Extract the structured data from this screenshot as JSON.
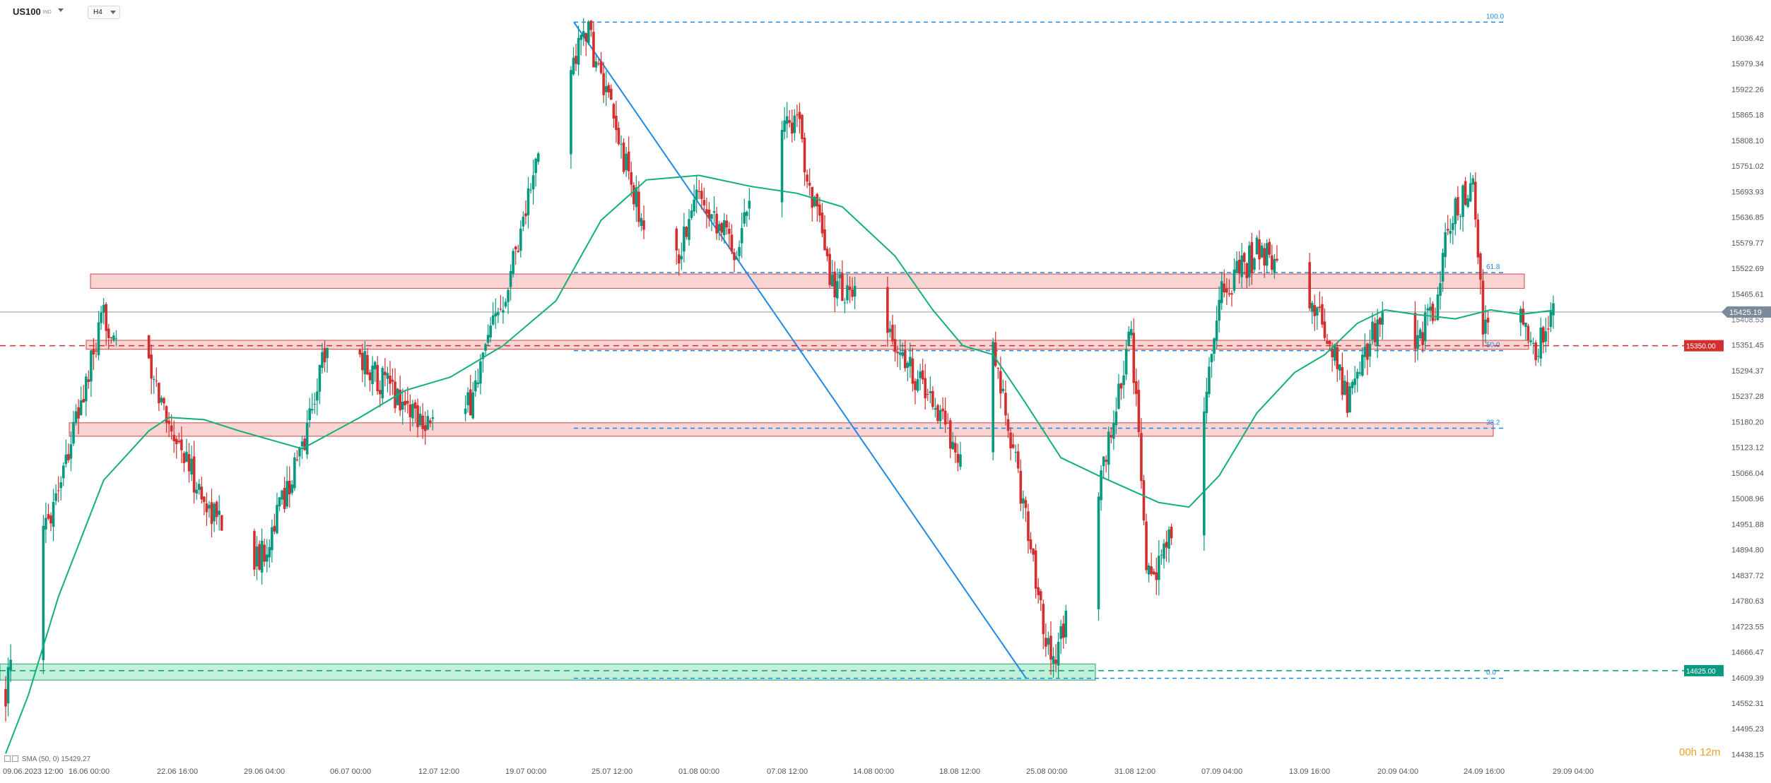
{
  "header": {
    "symbol": "US100",
    "symbol_sub": "IND",
    "timeframe": "H4"
  },
  "indicator": {
    "label": "SMA (50, 0) 15429.27"
  },
  "countdown": {
    "hours": "00h",
    "minutes": "12m"
  },
  "colors": {
    "up": "#089981",
    "down": "#d32f2f",
    "sma": "#10b07a",
    "fib": "#1e88e5",
    "zone_red": "#f8bcbc",
    "zone_green": "#a9e9c9"
  },
  "chart_data": {
    "type": "candlestick",
    "symbol": "US100",
    "timeframe": "H4",
    "ylim": [
      14420,
      16093
    ],
    "xlim": [
      "2023-06-09 12:00",
      "2023-09-29 04:00"
    ],
    "y_ticks": [
      "16036.42",
      "15979.34",
      "15922.26",
      "15865.18",
      "15808.10",
      "15751.02",
      "15693.93",
      "15636.85",
      "15579.77",
      "15522.69",
      "15465.61",
      "15408.53",
      "15351.45",
      "15294.37",
      "15237.28",
      "15180.20",
      "15123.12",
      "15066.04",
      "15008.96",
      "14951.88",
      "14894.80",
      "14837.72",
      "14780.63",
      "14723.55",
      "14666.47",
      "14609.39",
      "14552.31",
      "14495.23",
      "14438.15"
    ],
    "x_ticks": [
      "09.06.2023 12:00",
      "16.06 00:00",
      "22.06 16:00",
      "29.06 04:00",
      "06.07 00:00",
      "12.07 12:00",
      "19.07 00:00",
      "25.07 12:00",
      "01.08 00:00",
      "07.08 12:00",
      "14.08 00:00",
      "18.08 12:00",
      "25.08 00:00",
      "31.08 12:00",
      "07.09 04:00",
      "13.09 16:00",
      "20.09 04:00",
      "24.09 16:00",
      "29.09 04:00"
    ],
    "last_price": {
      "value": 15425.19,
      "label": "15425.19",
      "hidden_label": "15408.53"
    },
    "price_levels": [
      {
        "value": 15350.0,
        "label": "15350.00",
        "color": "#d32f2f"
      },
      {
        "value": 14625.0,
        "label": "14625.00",
        "color": "#089981"
      }
    ],
    "fibonacci": {
      "high": 16072,
      "low": 14608,
      "levels": [
        {
          "label": "100.0",
          "value": 16072
        },
        {
          "label": "61.8",
          "value": 15513
        },
        {
          "label": "50.0",
          "value": 15339
        },
        {
          "label": "38.2",
          "value": 15166
        },
        {
          "label": "0.0",
          "value": 14608
        }
      ]
    },
    "zones": [
      {
        "kind": "resistance",
        "from": "2023-06-16 00:00",
        "to": "2023-09-20 04:00",
        "low": 15478,
        "high": 15510
      },
      {
        "kind": "resistance",
        "from": "2023-06-15 20:00",
        "to": "2023-09-20 08:00",
        "low": 15342,
        "high": 15362
      },
      {
        "kind": "resistance",
        "from": "2023-06-15 00:00",
        "to": "2023-09-20 00:00",
        "low": 15148,
        "high": 15178
      },
      {
        "kind": "support",
        "from": "2023-06-09 12:00",
        "to": "2023-08-24 16:00",
        "low": 14604,
        "high": 14640
      }
    ],
    "trend_line": {
      "from": {
        "x": "2023-07-19 00:00",
        "y": 16072
      },
      "to": {
        "x": "2023-08-17 20:00",
        "y": 14608
      }
    },
    "anchors": [
      {
        "x": "2023-06-09 12:00",
        "close": 14580
      },
      {
        "x": "2023-06-12 04:00",
        "close": 14950
      },
      {
        "x": "2023-06-14 08:00",
        "close": 15200
      },
      {
        "x": "2023-06-16 00:00",
        "close": 15410
      },
      {
        "x": "2023-06-19 00:00",
        "close": 15290
      },
      {
        "x": "2023-06-22 16:00",
        "close": 15000
      },
      {
        "x": "2023-06-26 08:00",
        "close": 14870
      },
      {
        "x": "2023-06-29 04:00",
        "close": 15120
      },
      {
        "x": "2023-07-01 00:00",
        "close": 15390
      },
      {
        "x": "2023-07-06 00:00",
        "close": 15220
      },
      {
        "x": "2023-07-09 12:00",
        "close": 15140
      },
      {
        "x": "2023-07-12 12:00",
        "close": 15460
      },
      {
        "x": "2023-07-15 00:00",
        "close": 15790
      },
      {
        "x": "2023-07-18 00:00",
        "close": 16060
      },
      {
        "x": "2023-07-21 12:00",
        "close": 15650
      },
      {
        "x": "2023-07-23 16:00",
        "close": 15500
      },
      {
        "x": "2023-07-25 12:00",
        "close": 15700
      },
      {
        "x": "2023-07-28 00:00",
        "close": 15560
      },
      {
        "x": "2023-07-29 20:00",
        "close": 15860
      },
      {
        "x": "2023-08-01 00:00",
        "close": 15850
      },
      {
        "x": "2023-08-03 04:00",
        "close": 15500
      },
      {
        "x": "2023-08-05 12:00",
        "close": 15430
      },
      {
        "x": "2023-08-07 12:00",
        "close": 15350
      },
      {
        "x": "2023-08-10 00:00",
        "close": 15230
      },
      {
        "x": "2023-08-12 04:00",
        "close": 15080
      },
      {
        "x": "2023-08-14 00:00",
        "close": 15330
      },
      {
        "x": "2023-08-16 00:00",
        "close": 15000
      },
      {
        "x": "2023-08-17 20:00",
        "close": 14640
      },
      {
        "x": "2023-08-19 12:00",
        "close": 14800
      },
      {
        "x": "2023-08-21 00:00",
        "close": 15020
      },
      {
        "x": "2023-08-23 04:00",
        "close": 15380
      },
      {
        "x": "2023-08-24 04:00",
        "close": 14870
      },
      {
        "x": "2023-08-25 00:00",
        "close": 14860
      },
      {
        "x": "2023-08-27 08:00",
        "close": 15050
      },
      {
        "x": "2023-08-29 00:00",
        "close": 15460
      },
      {
        "x": "2023-08-31 12:00",
        "close": 15560
      },
      {
        "x": "2023-09-03 00:00",
        "close": 15520
      },
      {
        "x": "2023-09-05 08:00",
        "close": 15360
      },
      {
        "x": "2023-09-06 12:00",
        "close": 15230
      },
      {
        "x": "2023-09-08 16:00",
        "close": 15420
      },
      {
        "x": "2023-09-10 08:00",
        "close": 15320
      },
      {
        "x": "2023-09-12 12:00",
        "close": 15440
      },
      {
        "x": "2023-09-13 04:00",
        "close": 15620
      },
      {
        "x": "2023-09-14 20:00",
        "close": 15710
      },
      {
        "x": "2023-09-15 12:00",
        "close": 15390
      },
      {
        "x": "2023-09-17 12:00",
        "close": 15440
      },
      {
        "x": "2023-09-19 00:00",
        "close": 15330
      },
      {
        "x": "2023-09-20 04:00",
        "close": 15425
      }
    ],
    "sma": {
      "label": "SMA (50, 0)",
      "last": 15429.27,
      "points": [
        {
          "x": "2023-06-09 12:00",
          "y": 14440
        },
        {
          "x": "2023-06-11 00:00",
          "y": 14570
        },
        {
          "x": "2023-06-13 00:00",
          "y": 14790
        },
        {
          "x": "2023-06-16 00:00",
          "y": 15050
        },
        {
          "x": "2023-06-19 00:00",
          "y": 15160
        },
        {
          "x": "2023-06-20 08:00",
          "y": 15190
        },
        {
          "x": "2023-06-22 16:00",
          "y": 15185
        },
        {
          "x": "2023-06-25 00:00",
          "y": 15160
        },
        {
          "x": "2023-06-29 04:00",
          "y": 15120
        },
        {
          "x": "2023-07-03 00:00",
          "y": 15190
        },
        {
          "x": "2023-07-06 00:00",
          "y": 15250
        },
        {
          "x": "2023-07-09 00:00",
          "y": 15280
        },
        {
          "x": "2023-07-12 12:00",
          "y": 15350
        },
        {
          "x": "2023-07-16 00:00",
          "y": 15450
        },
        {
          "x": "2023-07-19 00:00",
          "y": 15630
        },
        {
          "x": "2023-07-22 00:00",
          "y": 15720
        },
        {
          "x": "2023-07-25 12:00",
          "y": 15730
        },
        {
          "x": "2023-07-29 00:00",
          "y": 15705
        },
        {
          "x": "2023-08-01 00:00",
          "y": 15690
        },
        {
          "x": "2023-08-04 00:00",
          "y": 15660
        },
        {
          "x": "2023-08-07 12:00",
          "y": 15550
        },
        {
          "x": "2023-08-10 00:00",
          "y": 15430
        },
        {
          "x": "2023-08-12 00:00",
          "y": 15350
        },
        {
          "x": "2023-08-14 00:00",
          "y": 15330
        },
        {
          "x": "2023-08-16 00:00",
          "y": 15230
        },
        {
          "x": "2023-08-18 12:00",
          "y": 15100
        },
        {
          "x": "2023-08-21 00:00",
          "y": 15060
        },
        {
          "x": "2023-08-23 00:00",
          "y": 15030
        },
        {
          "x": "2023-08-25 00:00",
          "y": 15000
        },
        {
          "x": "2023-08-27 00:00",
          "y": 14990
        },
        {
          "x": "2023-08-29 00:00",
          "y": 15060
        },
        {
          "x": "2023-08-31 12:00",
          "y": 15200
        },
        {
          "x": "2023-09-03 00:00",
          "y": 15290
        },
        {
          "x": "2023-09-05 00:00",
          "y": 15330
        },
        {
          "x": "2023-09-07 04:00",
          "y": 15400
        },
        {
          "x": "2023-09-09 00:00",
          "y": 15430
        },
        {
          "x": "2023-09-11 00:00",
          "y": 15420
        },
        {
          "x": "2023-09-13 16:00",
          "y": 15410
        },
        {
          "x": "2023-09-16 00:00",
          "y": 15430
        },
        {
          "x": "2023-09-18 00:00",
          "y": 15420
        },
        {
          "x": "2023-09-20 04:00",
          "y": 15429
        }
      ]
    }
  }
}
